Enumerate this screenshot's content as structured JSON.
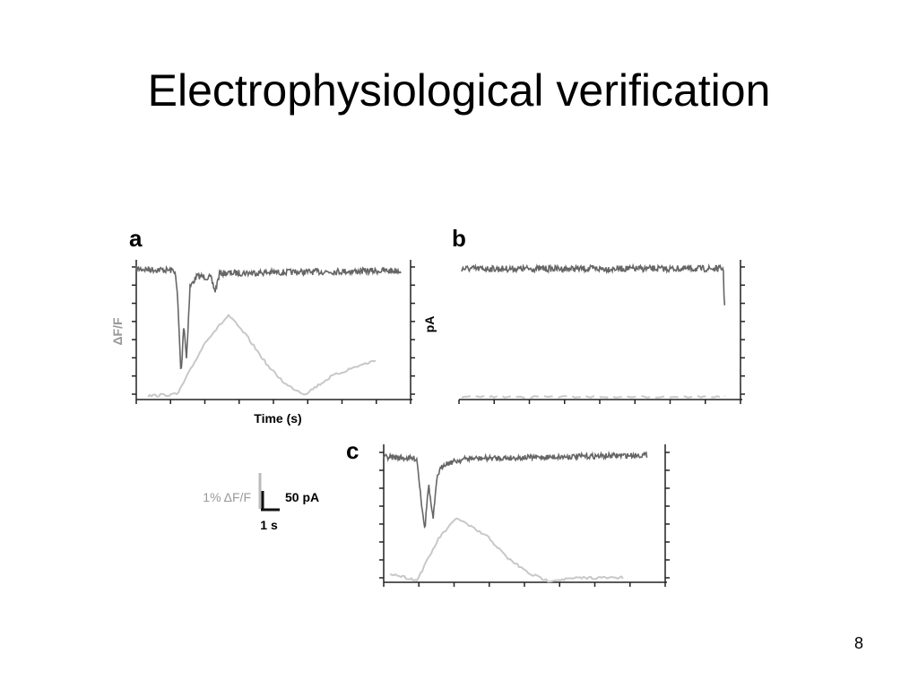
{
  "header": {
    "title": "Electrophysiological verification"
  },
  "figure": {
    "panels": [
      {
        "label": "a"
      },
      {
        "label": "b"
      },
      {
        "label": "c"
      }
    ],
    "axis_labels": {
      "left": "ΔF/F",
      "right": "pA",
      "bottom": "Time (s)"
    },
    "scale_bar": {
      "fluorescence": "1% ΔF/F",
      "current": "50 pA",
      "time": "1 s"
    }
  },
  "footer": {
    "page_number": "8"
  }
}
